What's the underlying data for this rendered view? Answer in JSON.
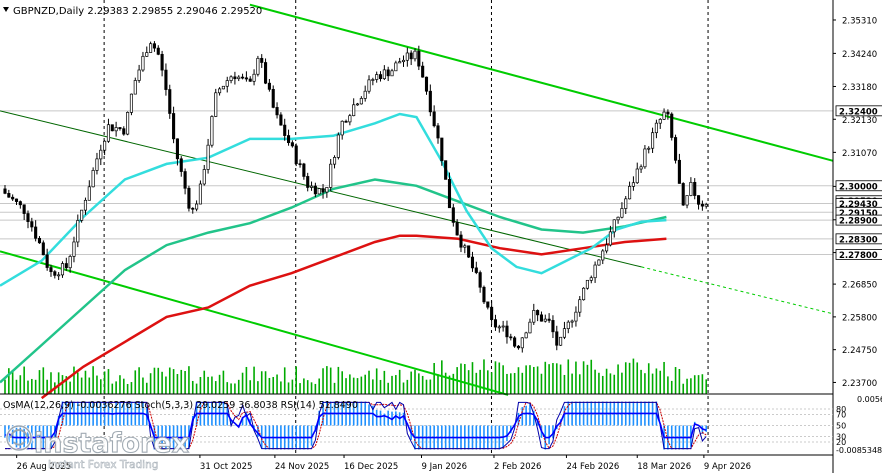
{
  "header": {
    "symbol_line": "GBPNZD,Daily  2.29383 2.29855 2.29046 2.29520"
  },
  "indicator_header": "OsMA(12,26,9) -0.0036276  Stoch(5,3,3) 29.0259 36.8038  RSI(14) 51.8490",
  "watermark": {
    "brand": "instaforex",
    "tagline": "Instant Forex Trading"
  },
  "colors": {
    "background": "#ffffff",
    "candle": "#000000",
    "volume": "#00aa00",
    "channel": "#00cc00",
    "trendline": "#006600",
    "ma_fast": "#33dddd",
    "ma_mid": "#22c48a",
    "ma_slow": "#dd1111",
    "osma": "#1e90ff",
    "stoch_main": "#0000aa",
    "stoch_signal": "#cc0000",
    "rsi": "#0000ff",
    "price_tag": "#ffffff"
  },
  "chart_data": {
    "type": "candlestick",
    "y_range": [
      2.2333,
      2.3595
    ],
    "x_range": [
      0,
      100
    ],
    "price_ticks": [
      "2.35310",
      "2.34240",
      "2.33180",
      "2.32130",
      "2.31070",
      "2.29980",
      "2.28910",
      "2.27860",
      "2.26850",
      "2.25800",
      "2.24750",
      "2.23700"
    ],
    "price_tick_values": [
      2.3531,
      2.3424,
      2.3318,
      2.3213,
      2.3107,
      2.2998,
      2.2891,
      2.2786,
      2.2685,
      2.258,
      2.2475,
      2.237
    ],
    "levels": [
      {
        "label": "2.32400",
        "value": 2.324,
        "style": "solid"
      },
      {
        "label": "2.30000",
        "value": 2.3,
        "style": "solid"
      },
      {
        "label": "2.29520",
        "value": 2.2952,
        "style": "current"
      },
      {
        "label": "2.29430",
        "value": 2.2943,
        "style": "solid"
      },
      {
        "label": "2.29150",
        "value": 2.2915,
        "style": "solid"
      },
      {
        "label": "2.28900",
        "value": 2.289,
        "style": "solid"
      },
      {
        "label": "2.28300",
        "value": 2.283,
        "style": "solid"
      },
      {
        "label": "2.27800",
        "value": 2.278,
        "style": "solid"
      }
    ],
    "date_labels": [
      "26 Aug 2025",
      "31 Oct 2025",
      "24 Nov 2025",
      "16 Dec 2025",
      "9 Jan 2026",
      "2 Feb 2026",
      "24 Feb 2026",
      "18 Mar 2026",
      "9 Apr 2026"
    ],
    "date_positions": [
      2,
      24,
      33,
      41.3,
      50.6,
      59.3,
      68,
      76.5,
      84.5
    ],
    "vgrid_positions": [
      12.5,
      35.5,
      59,
      85
    ],
    "close_anchors": [
      [
        0,
        2.299
      ],
      [
        3,
        2.292
      ],
      [
        5,
        2.28
      ],
      [
        6,
        2.272
      ],
      [
        8,
        2.274
      ],
      [
        10,
        2.294
      ],
      [
        12,
        2.312
      ],
      [
        13,
        2.319
      ],
      [
        15,
        2.318
      ],
      [
        16,
        2.332
      ],
      [
        18,
        2.347
      ],
      [
        19,
        2.342
      ],
      [
        20,
        2.33
      ],
      [
        21,
        2.312
      ],
      [
        23,
        2.291
      ],
      [
        24,
        2.298
      ],
      [
        26,
        2.33
      ],
      [
        28,
        2.336
      ],
      [
        30,
        2.332
      ],
      [
        31,
        2.342
      ],
      [
        33,
        2.323
      ],
      [
        35,
        2.312
      ],
      [
        37,
        2.3
      ],
      [
        39,
        2.298
      ],
      [
        41,
        2.32
      ],
      [
        43,
        2.328
      ],
      [
        45,
        2.335
      ],
      [
        47,
        2.337
      ],
      [
        48,
        2.34
      ],
      [
        50,
        2.342
      ],
      [
        51,
        2.333
      ],
      [
        53,
        2.31
      ],
      [
        54,
        2.293
      ],
      [
        55,
        2.284
      ],
      [
        57,
        2.272
      ],
      [
        59,
        2.256
      ],
      [
        61,
        2.253
      ],
      [
        62,
        2.248
      ],
      [
        64,
        2.259
      ],
      [
        66,
        2.256
      ],
      [
        67,
        2.248
      ],
      [
        69,
        2.26
      ],
      [
        71,
        2.272
      ],
      [
        73,
        2.283
      ],
      [
        75,
        2.295
      ],
      [
        77,
        2.308
      ],
      [
        79,
        2.32
      ],
      [
        80,
        2.324
      ],
      [
        81,
        2.31
      ],
      [
        82,
        2.292
      ],
      [
        83,
        2.3
      ],
      [
        84,
        2.294
      ],
      [
        85,
        2.2952
      ]
    ],
    "ma_fast_points": [
      [
        0,
        2.268
      ],
      [
        5,
        2.276
      ],
      [
        10,
        2.29
      ],
      [
        15,
        2.302
      ],
      [
        20,
        2.307
      ],
      [
        25,
        2.309
      ],
      [
        30,
        2.315
      ],
      [
        35,
        2.315
      ],
      [
        40,
        2.316
      ],
      [
        45,
        2.32
      ],
      [
        48,
        2.323
      ],
      [
        50,
        2.322
      ],
      [
        53,
        2.308
      ],
      [
        56,
        2.292
      ],
      [
        59,
        2.28
      ],
      [
        62,
        2.274
      ],
      [
        65,
        2.272
      ],
      [
        68,
        2.276
      ],
      [
        71,
        2.28
      ],
      [
        74,
        2.286
      ],
      [
        77,
        2.2885
      ],
      [
        80,
        2.289
      ]
    ],
    "ma_mid_points": [
      [
        0,
        2.237
      ],
      [
        5,
        2.249
      ],
      [
        10,
        2.261
      ],
      [
        15,
        2.273
      ],
      [
        20,
        2.281
      ],
      [
        25,
        2.285
      ],
      [
        30,
        2.288
      ],
      [
        35,
        2.293
      ],
      [
        40,
        2.299
      ],
      [
        45,
        2.302
      ],
      [
        50,
        2.3
      ],
      [
        55,
        2.295
      ],
      [
        60,
        2.29
      ],
      [
        65,
        2.286
      ],
      [
        70,
        2.285
      ],
      [
        75,
        2.287
      ],
      [
        80,
        2.29
      ]
    ],
    "ma_slow_points": [
      [
        5,
        2.232
      ],
      [
        10,
        2.242
      ],
      [
        15,
        2.25
      ],
      [
        20,
        2.258
      ],
      [
        25,
        2.261
      ],
      [
        30,
        2.268
      ],
      [
        35,
        2.272
      ],
      [
        40,
        2.277
      ],
      [
        45,
        2.282
      ],
      [
        48,
        2.284
      ],
      [
        50,
        2.284
      ],
      [
        55,
        2.283
      ],
      [
        60,
        2.28
      ],
      [
        65,
        2.278
      ],
      [
        70,
        2.28
      ],
      [
        75,
        2.282
      ],
      [
        80,
        2.283
      ]
    ],
    "channel_upper": [
      [
        30,
        2.358
      ],
      [
        100,
        2.308
      ]
    ],
    "channel_lower": [
      [
        0,
        2.279
      ],
      [
        61,
        2.233
      ]
    ],
    "trendline": [
      [
        0,
        2.324
      ],
      [
        77,
        2.274
      ]
    ],
    "trendline_ext": [
      [
        77,
        2.274
      ],
      [
        100,
        2.259
      ]
    ],
    "osma_levels": [
      "0.0056286",
      "-0.0085348"
    ],
    "stoch_levels": [
      "80",
      "70",
      "50",
      "30",
      "20"
    ],
    "stoch_level_values": [
      80,
      70,
      50,
      30,
      20
    ]
  }
}
